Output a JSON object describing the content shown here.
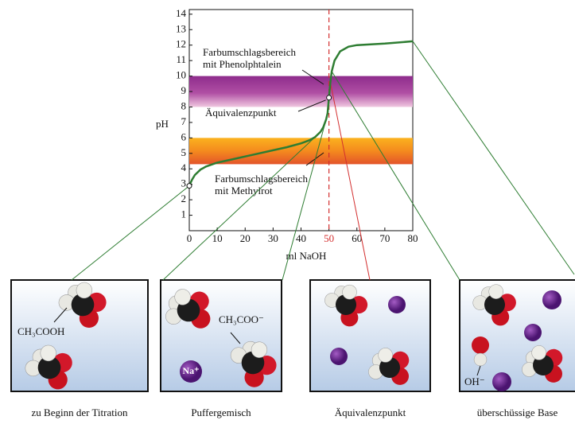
{
  "chart_data": {
    "type": "line",
    "ylabel": "pH",
    "xlabel": "ml NaOH",
    "xlim": [
      0,
      80
    ],
    "ylim": [
      0,
      14.3
    ],
    "xticks": [
      0,
      10,
      20,
      30,
      40,
      50,
      60,
      70,
      80
    ],
    "yticks": [
      1,
      2,
      3,
      4,
      5,
      6,
      7,
      8,
      9,
      10,
      11,
      12,
      13,
      14
    ],
    "color": "#2e7d32",
    "x": [
      0,
      1,
      2,
      4,
      6,
      10,
      15,
      20,
      25,
      30,
      35,
      40,
      43,
      45,
      47,
      48,
      49,
      49.5,
      50,
      50.5,
      51,
      52,
      54,
      57,
      60,
      70,
      80
    ],
    "values": [
      2.9,
      3.3,
      3.6,
      3.95,
      4.15,
      4.4,
      4.6,
      4.8,
      5.0,
      5.2,
      5.4,
      5.65,
      5.85,
      6.05,
      6.4,
      6.7,
      7.2,
      7.6,
      8.6,
      9.6,
      10.3,
      11.0,
      11.6,
      11.9,
      12.0,
      12.1,
      12.25
    ],
    "highlight_color": "#d32f2f",
    "equivalence_point": {
      "x": 50,
      "y": 8.6,
      "label": "Äquivalenzpunkt"
    },
    "bands": [
      {
        "from": 8,
        "to": 10,
        "label": [
          "Farbumschlagsbereich",
          "mit Phenolphtalein"
        ]
      },
      {
        "from": 4.3,
        "to": 6,
        "label": [
          "Farbumschlagsbereich",
          "mit Methylrot"
        ]
      }
    ]
  },
  "panels": [
    {
      "caption": "zu Beginn der Titration",
      "labels": [
        "CH₃COOH"
      ]
    },
    {
      "caption": "Puffergemisch",
      "labels": [
        "CH₃COO⁻",
        "Na⁺"
      ]
    },
    {
      "caption": "Äquivalenzpunkt",
      "labels": []
    },
    {
      "caption": "überschüssige Base",
      "labels": [
        "OH⁻"
      ]
    }
  ]
}
